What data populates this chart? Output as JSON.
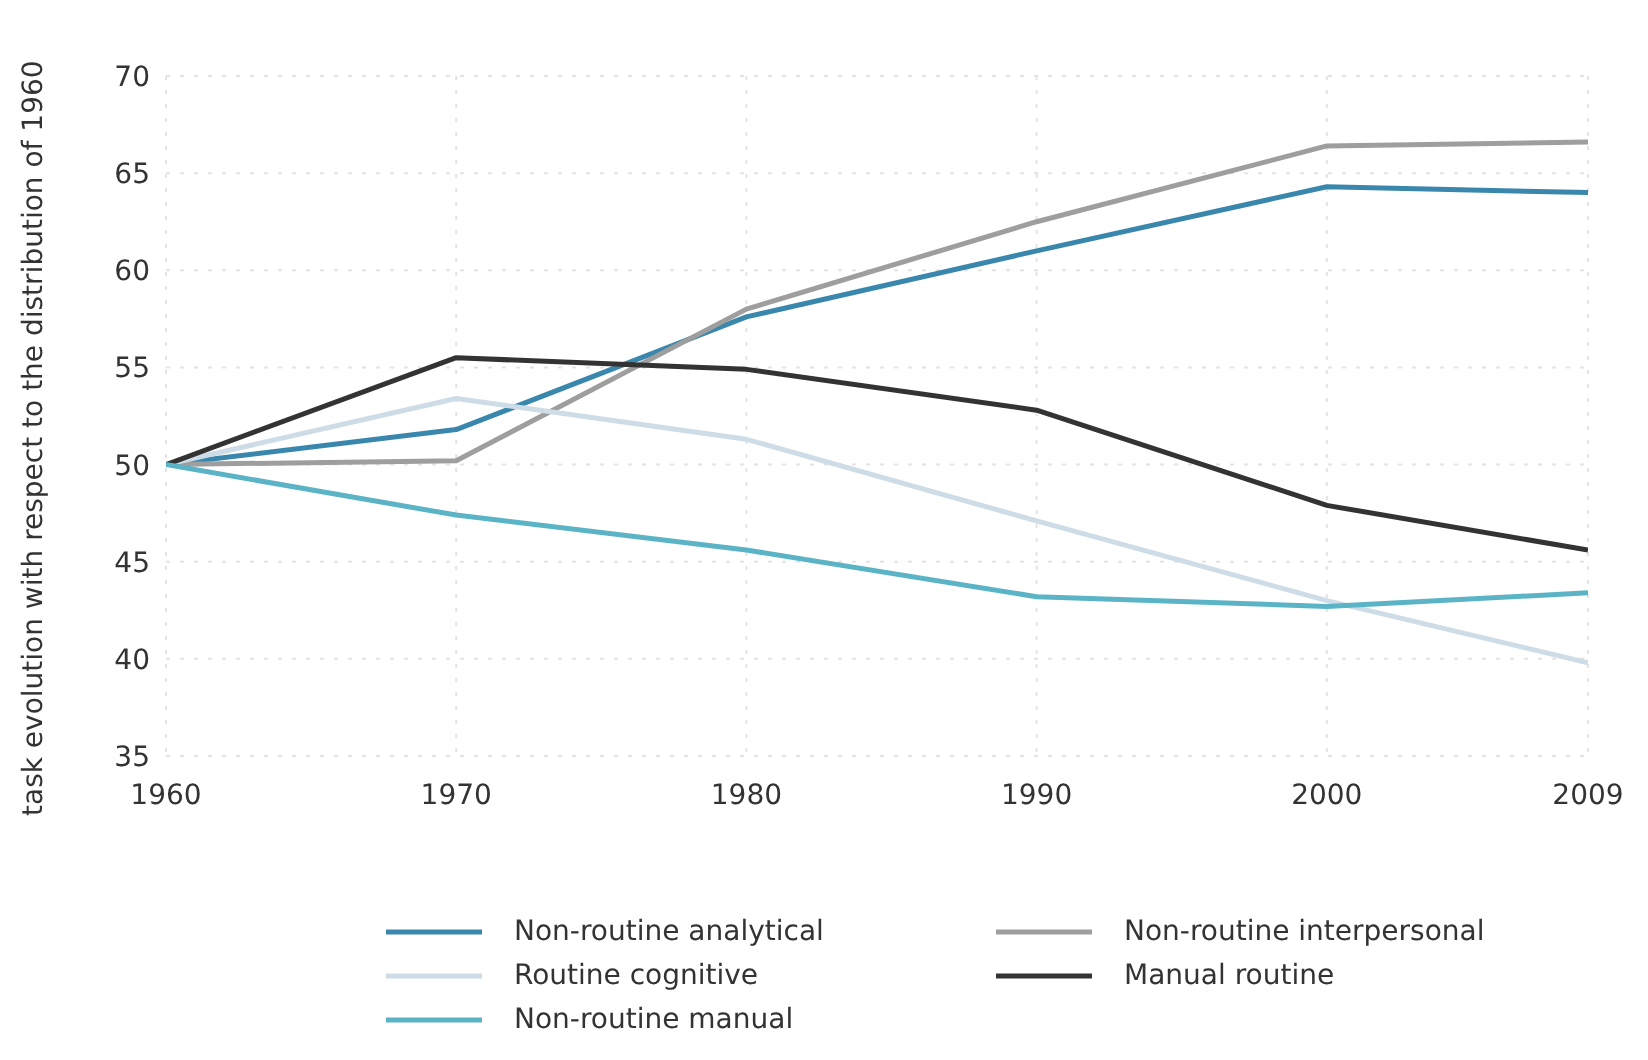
{
  "chart_data": {
    "type": "line",
    "ylabel": "task evolution with respect to the distribution of 1960",
    "x": [
      1960,
      1970,
      1980,
      1990,
      2000,
      2009
    ],
    "xlim": [
      1960,
      2009
    ],
    "xticks": [
      1960,
      1970,
      1980,
      1990,
      2000,
      2009
    ],
    "ylim": [
      35,
      70
    ],
    "yticks": [
      35,
      40,
      45,
      50,
      55,
      60,
      65,
      70
    ],
    "grid": true,
    "legend": "bottom",
    "marker": "none",
    "line_style": "solid",
    "series": [
      {
        "name": "Non-routine analytical",
        "color": "#3a87ad",
        "values": [
          50,
          51.8,
          57.6,
          61.0,
          64.3,
          64.0
        ]
      },
      {
        "name": "Non-routine interpersonal",
        "color": "#9e9e9e",
        "values": [
          50,
          50.2,
          58.0,
          62.5,
          66.4,
          66.6
        ]
      },
      {
        "name": "Routine cognitive",
        "color": "#cddce6",
        "values": [
          50,
          53.4,
          51.3,
          47.1,
          43.0,
          39.8
        ]
      },
      {
        "name": "Manual routine",
        "color": "#333333",
        "values": [
          50,
          55.5,
          54.9,
          52.8,
          47.9,
          45.6
        ]
      },
      {
        "name": "Non-routine manual",
        "color": "#5ab4c6",
        "values": [
          50,
          47.4,
          45.6,
          43.2,
          42.7,
          43.4
        ]
      }
    ]
  }
}
